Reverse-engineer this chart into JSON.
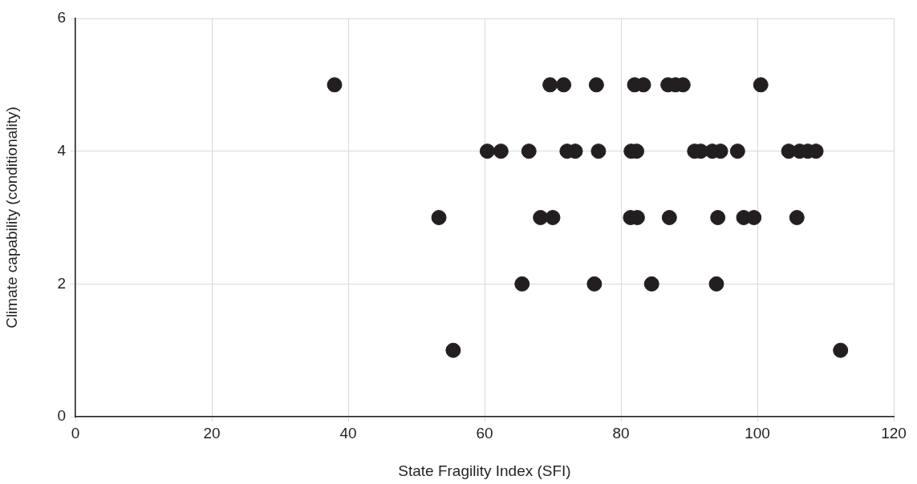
{
  "chart_data": {
    "type": "scatter",
    "xlabel": "State Fragility Index (SFI)",
    "ylabel": "Climate capability (conditionality)",
    "xlim": [
      0,
      120
    ],
    "xticks": [
      0,
      20,
      40,
      60,
      80,
      100,
      120
    ],
    "ylim": [
      0,
      6
    ],
    "yticks": [
      0,
      2,
      4,
      6
    ],
    "grid": true,
    "marker": "circle",
    "series": [
      {
        "color": "#231f20",
        "x": [
          38.0,
          69.6,
          71.6,
          76.4,
          82.0,
          83.3,
          86.9,
          88.0,
          89.1,
          100.5,
          60.4,
          62.4,
          66.5,
          72.1,
          73.3,
          76.7,
          81.5,
          82.3,
          90.8,
          91.7,
          93.4,
          94.6,
          97.1,
          104.6,
          106.2,
          107.4,
          108.6,
          53.3,
          68.2,
          70.0,
          81.4,
          82.4,
          87.1,
          94.2,
          98.0,
          99.5,
          105.8,
          65.5,
          76.1,
          84.5,
          94.0,
          55.4,
          112.2
        ],
        "values": [
          5,
          5,
          5,
          5,
          5,
          5,
          5,
          5,
          5,
          5,
          4,
          4,
          4,
          4,
          4,
          4,
          4,
          4,
          4,
          4,
          4,
          4,
          4,
          4,
          4,
          4,
          4,
          3,
          3,
          3,
          3,
          3,
          3,
          3,
          3,
          3,
          3,
          2,
          2,
          2,
          2,
          1,
          1
        ]
      }
    ]
  }
}
